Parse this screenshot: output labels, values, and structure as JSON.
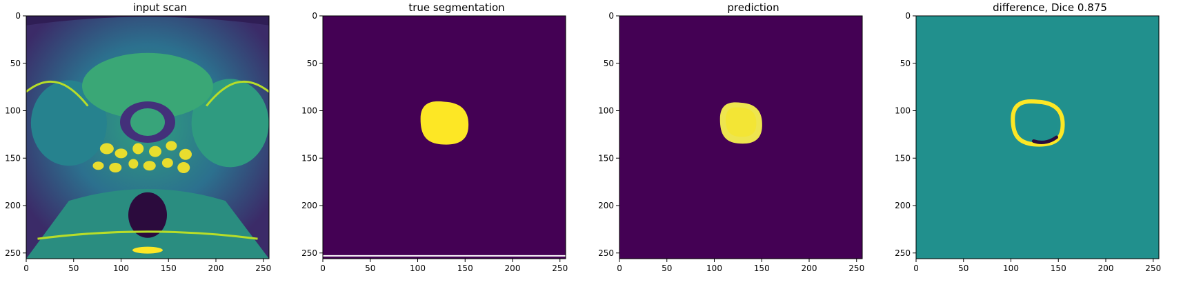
{
  "figure": {
    "panels": [
      {
        "title": "input scan",
        "kind": "scan"
      },
      {
        "title": "true segmentation",
        "kind": "truth"
      },
      {
        "title": "prediction",
        "kind": "prediction"
      },
      {
        "title": "difference, Dice 0.875",
        "kind": "difference"
      }
    ],
    "axis": {
      "range": [
        0,
        256
      ],
      "x_ticks": [
        "0",
        "50",
        "100",
        "150",
        "200",
        "250"
      ],
      "y_ticks": [
        "0",
        "50",
        "100",
        "150",
        "200",
        "250"
      ]
    },
    "colors": {
      "background_purple": "#440154",
      "mask_yellow": "#fde725",
      "difference_teal": "#21908d",
      "dark_purple": "#2b0b3d",
      "axis_black": "#000000"
    }
  }
}
